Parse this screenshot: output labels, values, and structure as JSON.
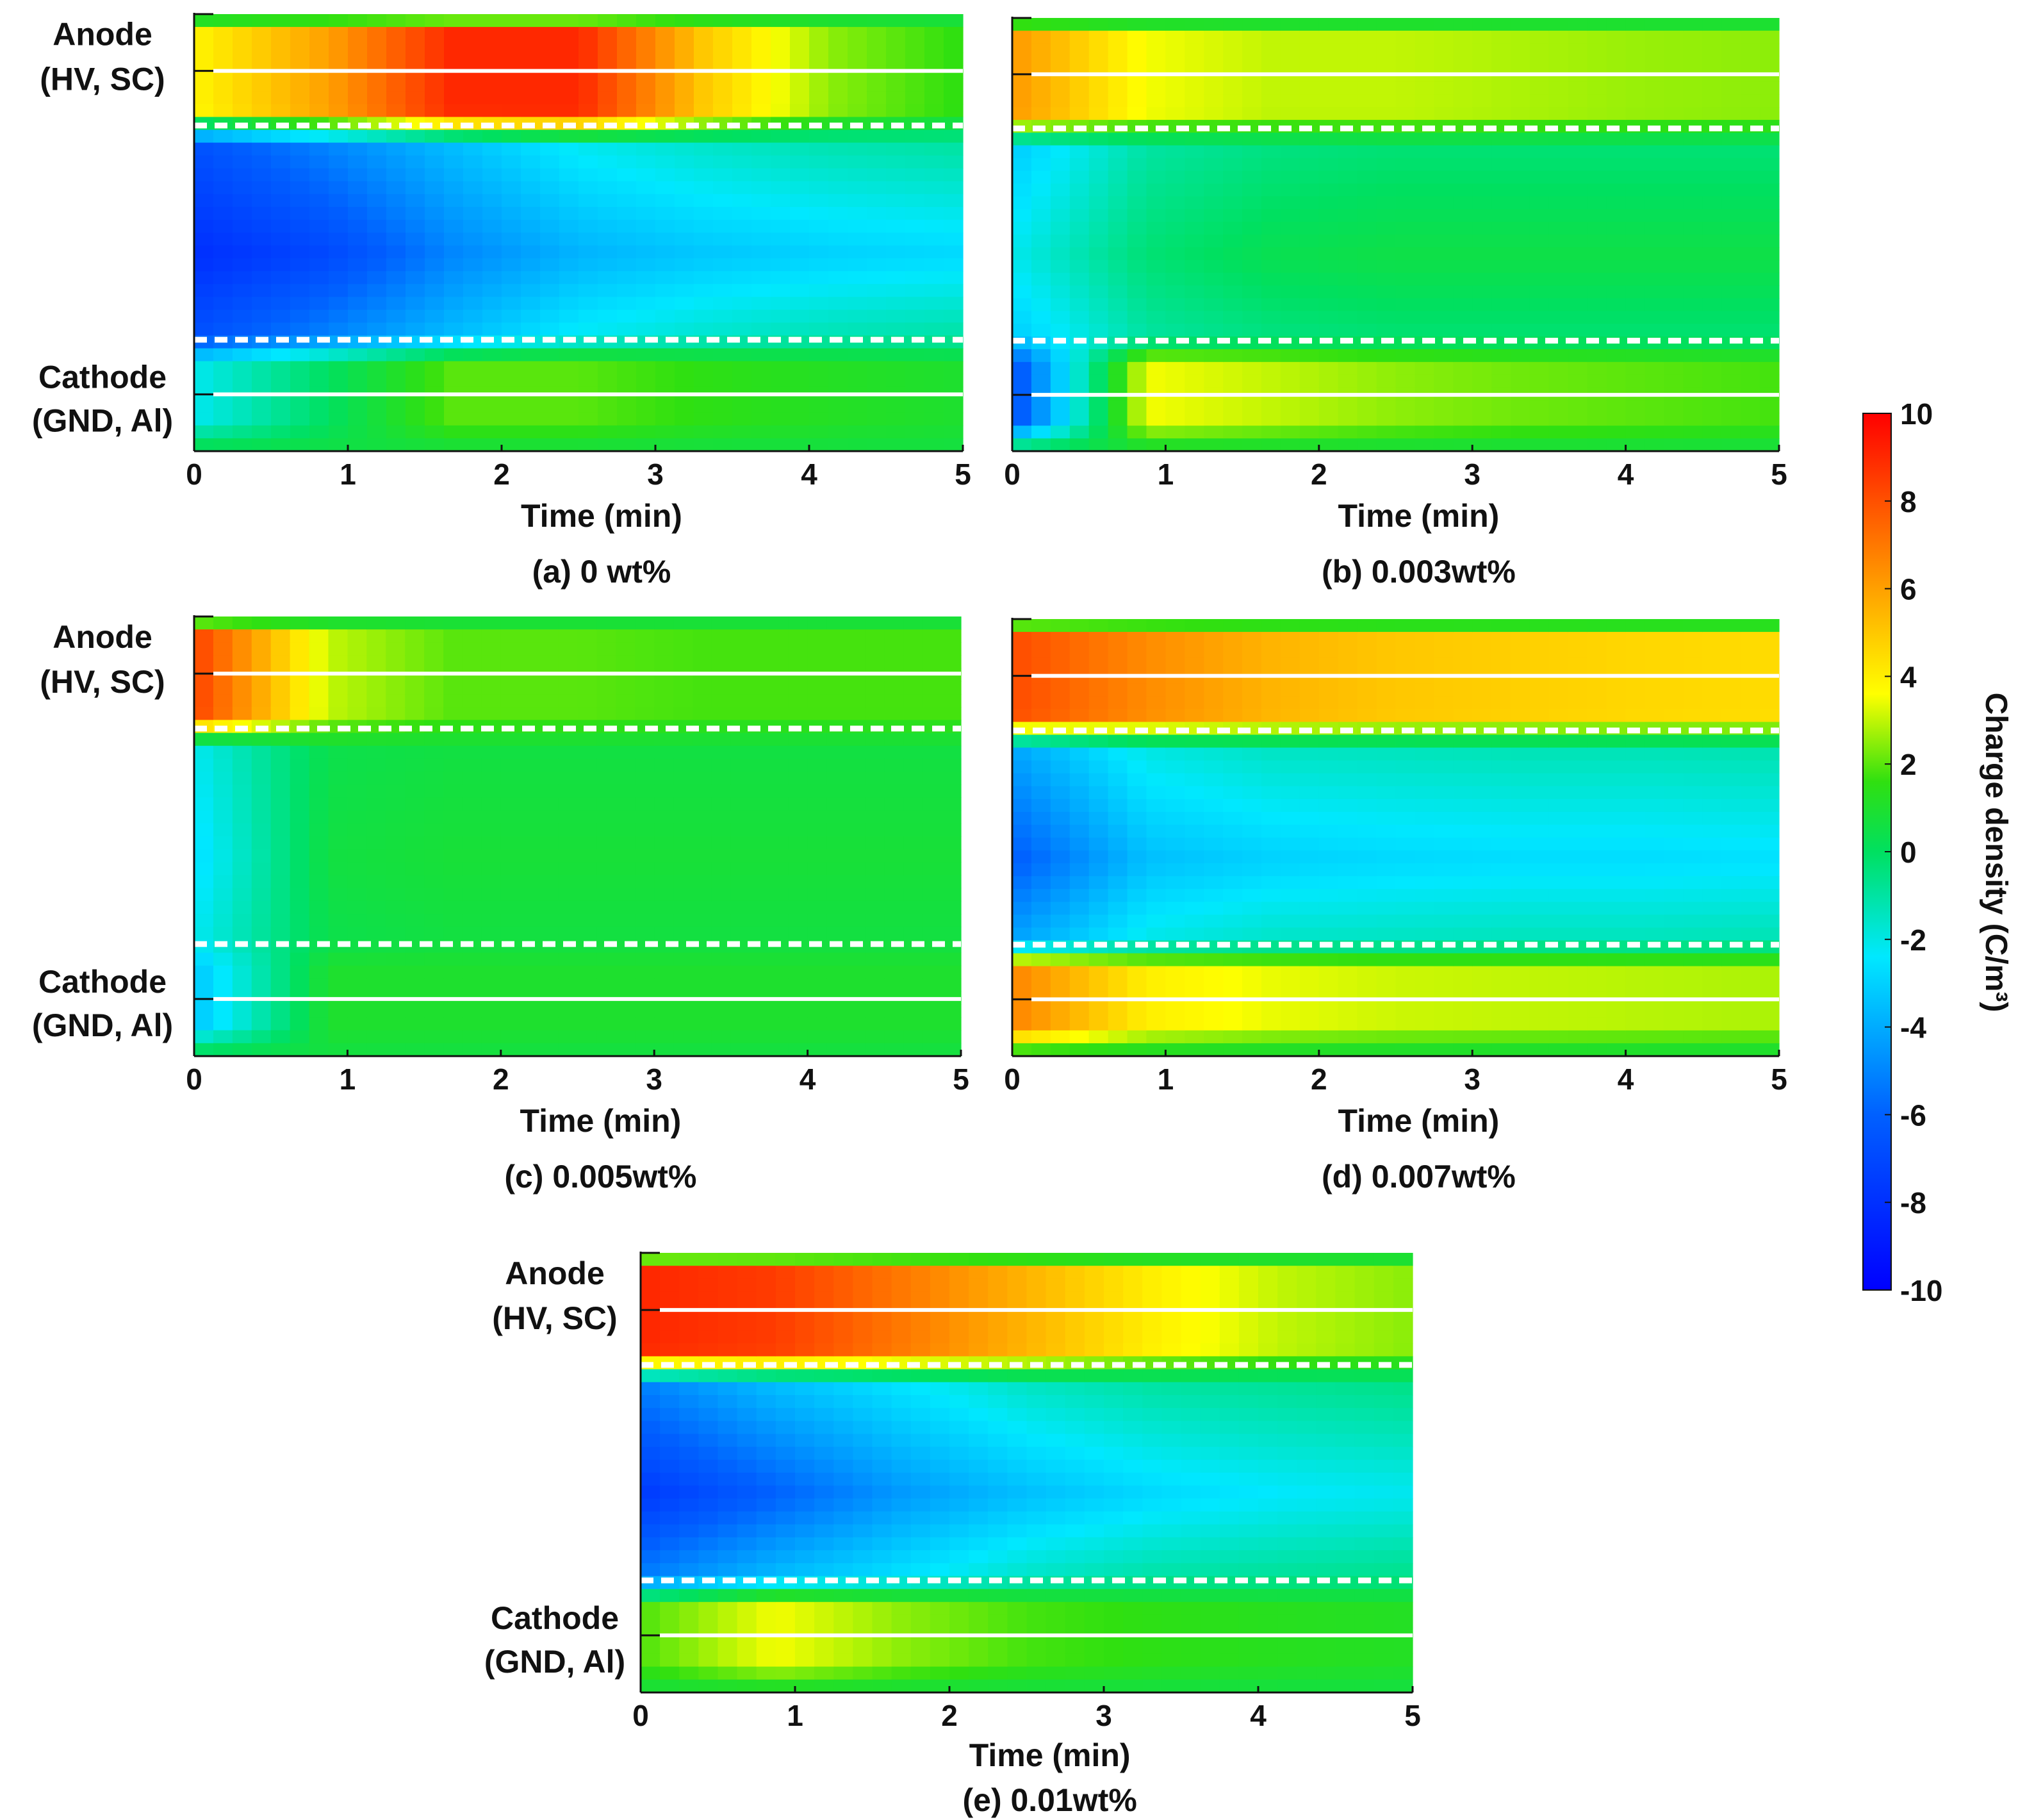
{
  "chart_data": [
    {
      "id": "a",
      "type": "heatmap",
      "caption": "(a) 0 wt%",
      "xlabel": "Time (min)",
      "xticks": [
        "0",
        "1",
        "2",
        "3",
        "4",
        "5"
      ],
      "xlim": [
        0,
        5
      ],
      "anode_label": [
        "Anode",
        "(HV, SC)"
      ],
      "cathode_label": [
        "Cathode",
        "(GND, Al)"
      ],
      "field": {
        "anode_edge": [
          4.0,
          6.0,
          9.0,
          9.0,
          5.0,
          2.5,
          1.6
        ],
        "bulk_center": [
          -8.0,
          -7.0,
          -5.0,
          -3.8,
          -3.3,
          -3.0,
          -2.8
        ],
        "bulk_edge": [
          -6.5,
          -5.0,
          -3.5,
          -2.2,
          -1.6,
          -1.2,
          -1.0
        ],
        "cathode_edge": [
          -2.0,
          0.0,
          2.0,
          2.0,
          1.5,
          1.2,
          1.0
        ]
      }
    },
    {
      "id": "b",
      "type": "heatmap",
      "caption": "(b) 0.003wt%",
      "xlabel": "Time (min)",
      "xticks": [
        "0",
        "1",
        "2",
        "3",
        "4",
        "5"
      ],
      "xlim": [
        0,
        5
      ],
      "anode_label": [
        "Anode",
        "(HV, SC)"
      ],
      "cathode_label": [
        "Cathode",
        "(GND, Al)"
      ],
      "field": {
        "anode_edge": [
          6.0,
          3.5,
          3.0,
          3.0,
          2.8,
          2.6,
          2.5
        ],
        "bulk_center": [
          -2.0,
          -0.3,
          0.3,
          0.5,
          0.5,
          0.5,
          0.5
        ],
        "bulk_edge": [
          -3.0,
          -1.0,
          -0.5,
          -0.3,
          -0.3,
          -0.3,
          -0.3
        ],
        "cathode_edge": [
          -6.0,
          3.5,
          3.0,
          2.5,
          2.2,
          2.0,
          1.8
        ]
      }
    },
    {
      "id": "c",
      "type": "heatmap",
      "caption": "(c) 0.005wt%",
      "xlabel": "Time (min)",
      "xticks": [
        "0",
        "1",
        "2",
        "3",
        "4",
        "5"
      ],
      "xlim": [
        0,
        5
      ],
      "anode_label": [
        "Anode",
        "(HV, SC)"
      ],
      "cathode_label": [
        "Cathode",
        "(GND, Al)"
      ],
      "field": {
        "anode_edge": [
          8.0,
          3.0,
          2.0,
          2.0,
          1.8,
          1.8,
          1.8
        ],
        "bulk_center": [
          -2.5,
          0.6,
          0.8,
          0.8,
          0.8,
          0.8,
          0.8
        ],
        "bulk_edge": [
          -2.0,
          0.4,
          0.6,
          0.6,
          0.6,
          0.6,
          0.6
        ],
        "cathode_edge": [
          -3.0,
          1.0,
          1.0,
          1.0,
          1.0,
          1.0,
          1.0
        ]
      }
    },
    {
      "id": "d",
      "type": "heatmap",
      "caption": "(d) 0.007wt%",
      "xlabel": "Time (min)",
      "xticks": [
        "0",
        "1",
        "2",
        "3",
        "4",
        "5"
      ],
      "xlim": [
        0,
        5
      ],
      "anode_label": [
        "Anode",
        "(HV, SC)"
      ],
      "cathode_label": [
        "Cathode",
        "(GND, Al)"
      ],
      "field": {
        "anode_edge": [
          8.0,
          6.5,
          5.5,
          5.0,
          4.8,
          4.6,
          4.5
        ],
        "bulk_center": [
          -6.0,
          -3.5,
          -3.0,
          -2.8,
          -2.7,
          -2.7,
          -2.6
        ],
        "bulk_edge": [
          -4.0,
          -2.0,
          -1.5,
          -1.4,
          -1.3,
          -1.3,
          -1.2
        ],
        "cathode_edge": [
          6.5,
          4.0,
          3.4,
          3.1,
          3.0,
          2.9,
          2.8
        ]
      }
    },
    {
      "id": "e",
      "type": "heatmap",
      "caption": "(e) 0.01wt%",
      "xlabel": "Time (min)",
      "xticks": [
        "0",
        "1",
        "2",
        "3",
        "4",
        "5"
      ],
      "xlim": [
        0,
        5
      ],
      "anode_label": [
        "Anode",
        "(HV, SC)"
      ],
      "cathode_label": [
        "Cathode",
        "(GND, Al)"
      ],
      "field": {
        "anode_edge": [
          9.0,
          8.5,
          7.0,
          5.5,
          4.0,
          3.0,
          2.5
        ],
        "bulk_center": [
          -7.5,
          -6.0,
          -4.5,
          -3.5,
          -2.8,
          -2.4,
          -2.2
        ],
        "bulk_edge": [
          -5.0,
          -3.5,
          -2.5,
          -1.5,
          -1.0,
          -0.8,
          -0.6
        ],
        "cathode_edge": [
          2.0,
          3.5,
          2.5,
          1.8,
          1.5,
          1.3,
          1.2
        ]
      }
    }
  ],
  "colorbar": {
    "label": "Charge density (C/m³)",
    "min": -10,
    "max": 10,
    "ticks": [
      "10",
      "8",
      "6",
      "4",
      "2",
      "0",
      "-2",
      "-4",
      "-6",
      "-8",
      "-10"
    ],
    "stops": [
      "#0000ff",
      "#00b4ff",
      "#00f0f0",
      "#00e060",
      "#10e010",
      "#ffff00",
      "#ffb000",
      "#ff5000",
      "#ff0000"
    ]
  }
}
